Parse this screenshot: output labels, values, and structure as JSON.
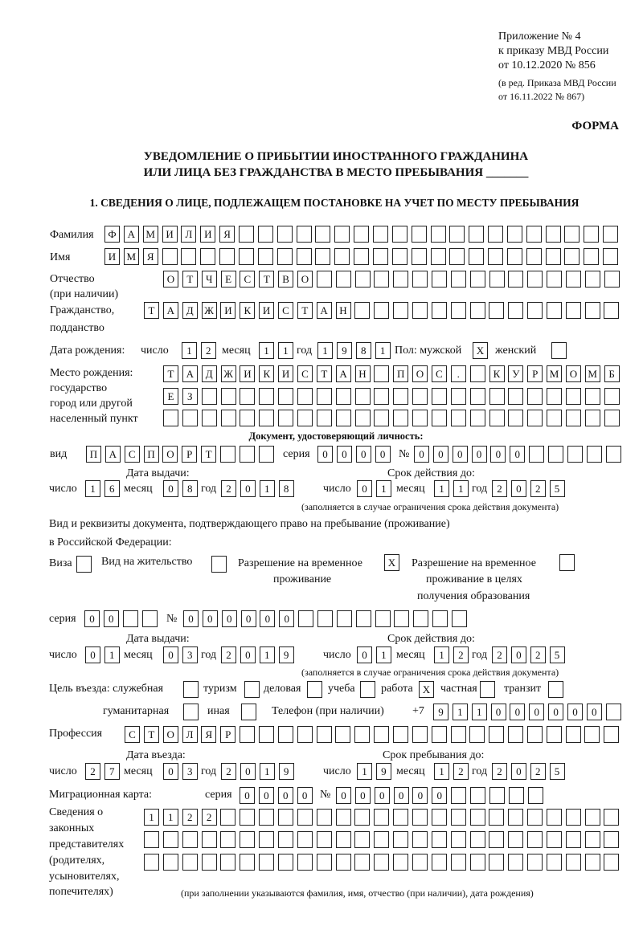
{
  "header": {
    "appendix": "Приложение № 4",
    "order": "к приказу МВД России",
    "order_date": "от 10.12.2020 № 856",
    "edition1": "(в ред. Приказа МВД России",
    "edition2": "от 16.11.2022 № 867)",
    "form": "ФОРМА",
    "title1": "УВЕДОМЛЕНИЕ О ПРИБЫТИИ ИНОСТРАННОГО ГРАЖДАНИНА",
    "title2": "ИЛИ ЛИЦА БЕЗ ГРАЖДАНСТВА В МЕСТО ПРЕБЫВАНИЯ _______",
    "section1": "1. СВЕДЕНИЯ О ЛИЦЕ, ПОДЛЕЖАЩЕМ ПОСТАНОВКЕ НА УЧЕТ ПО МЕСТУ ПРЕБЫВАНИЯ"
  },
  "labels": {
    "surname": "Фамилия",
    "name": "Имя",
    "patronymic": "Отчество",
    "patronymic2": "(при наличии)",
    "citizenship": "Гражданство,",
    "citizenship2": "подданство",
    "birth_date": "Дата рождения:",
    "day": "число",
    "month": "месяц",
    "year": "год",
    "sex": "Пол: мужской",
    "female": "женский",
    "birth_place": "Место рождения:",
    "bp2": "государство",
    "bp3": "город или другой",
    "bp4": "населенный пункт",
    "id_doc": "Документ, удостоверяющий личность:",
    "kind": "вид",
    "series": "серия",
    "number": "№",
    "issue_date": "Дата выдачи:",
    "valid_until": "Срок действия до:",
    "valid_note": "(заполняется в случае ограничения срока действия документа)",
    "right_doc1": "Вид и реквизиты документа, подтверждающего право на пребывание (проживание)",
    "right_doc2": "в Российской Федерации:",
    "visa": "Виза",
    "residence": "Вид на жительство",
    "temp1": "Разрешение на временное",
    "temp2": "проживание",
    "edu1": "Разрешение на временное",
    "edu2": "проживание в целях",
    "edu3": "получения образования",
    "purpose": "Цель въезда: служебная",
    "tourism": "туризм",
    "business": "деловая",
    "study": "учеба",
    "work": "работа",
    "private": "частная",
    "transit": "транзит",
    "humanitarian": "гуманитарная",
    "other": "иная",
    "phone": "Телефон (при наличии)",
    "phone_prefix": "+7",
    "profession": "Профессия",
    "entry_date": "Дата въезда:",
    "stay_until": "Срок пребывания до:",
    "migration_card": "Миграционная карта:",
    "rep1": "Сведения о",
    "rep2": "законных",
    "rep3": "представителях",
    "rep4": "(родителях,",
    "rep5": "усыновителях,",
    "rep6": "попечителях)",
    "rep_note": "(при заполнении указываются фамилия, имя, отчество (при наличии), дата рождения)"
  },
  "fields": {
    "surname": "ФАМИЛИЯ",
    "name": "ИМЯ",
    "patronymic": "ОТЧЕСТВО",
    "citizenship": "ТАДЖИКИСТАН",
    "birth_day": "12",
    "birth_month": "11",
    "birth_year": "1981",
    "sex_male": "X",
    "sex_female": "",
    "birth_place1": "ТАДЖИКИСТАН ПОС. КУРМОМБ",
    "birth_place2": "ЕЗ",
    "birth_place3": "",
    "doc_kind": "ПАСПОРТ",
    "doc_series": "0000",
    "doc_number": "000000",
    "doc_issue_day": "16",
    "doc_issue_month": "08",
    "doc_issue_year": "2018",
    "doc_valid_day": "01",
    "doc_valid_month": "11",
    "doc_valid_year": "2025",
    "visa": "",
    "residence": "",
    "temp_residence": "X",
    "temp_residence_edu": "",
    "right_series": "00",
    "right_number": "000000",
    "right_issue_day": "01",
    "right_issue_month": "03",
    "right_issue_year": "2019",
    "right_valid_day": "01",
    "right_valid_month": "12",
    "right_valid_year": "2025",
    "p_service": "",
    "p_tourism": "",
    "p_business": "",
    "p_study": "",
    "p_work": "X",
    "p_private": "",
    "p_transit": "",
    "p_humanitarian": "",
    "p_other": "",
    "phone": "911000000",
    "profession": "СТОЛЯР",
    "entry_day": "27",
    "entry_month": "03",
    "entry_year": "2019",
    "stay_day": "19",
    "stay_month": "12",
    "stay_year": "2025",
    "mc_series": "0000",
    "mc_number": "000000",
    "rep1": "1122",
    "rep2": "",
    "rep3": ""
  }
}
